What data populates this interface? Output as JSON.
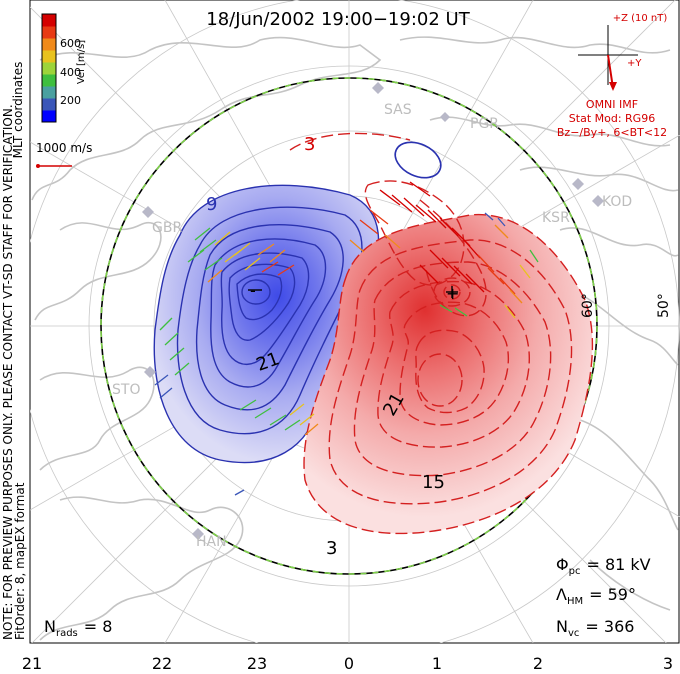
{
  "title": "18/Jun/2002 19:00−19:02 UT",
  "colorbar": {
    "label": "Vel [m/s]",
    "ticks": [
      "600",
      "400",
      "200"
    ],
    "colors": [
      "#0000ff",
      "#3a56b8",
      "#4aa0a0",
      "#3fbf3f",
      "#9dd43a",
      "#e8c21e",
      "#f08a1a",
      "#e83a14",
      "#d40000"
    ]
  },
  "coord_label": "MLT coordinates",
  "scale_vector": {
    "label": "1000 m/s"
  },
  "imf_panel": {
    "bz_label": "+Z (10 nT)",
    "by_label": "+Y",
    "source": "OMNI IMF",
    "model_line1": "Stat Mod: RG96",
    "model_line2": "Bz−/By+, 6<BT<12"
  },
  "notes": {
    "preview": "NOTE: FOR PREVIEW PURPOSES ONLY. PLEASE CONTACT VT-SD STAFF FOR VERIFICATION.",
    "fit": "FitOrder: 8, mapEX format"
  },
  "radars": [
    "SAS",
    "PGR",
    "KSR",
    "KOD",
    "GBR",
    "STO",
    "HAN"
  ],
  "latitude_labels": [
    "60°",
    "50°"
  ],
  "contour_labels": [
    "3",
    "9",
    "21",
    "-",
    "+",
    "21",
    "15",
    "3"
  ],
  "stats": {
    "phi_symbol": "Φ",
    "phi_sub": "pc",
    "phi_value": "= 81 kV",
    "lambda_symbol": "Λ",
    "lambda_sub": "HM",
    "lambda_value": "= 59°",
    "nvc_symbol": "N",
    "nvc_sub": "vc",
    "nvc_value": "= 366",
    "nrads_symbol": "N",
    "nrads_sub": "rads",
    "nrads_value": "= 8"
  },
  "mlt_axis": [
    "21",
    "22",
    "23",
    "0",
    "1",
    "2",
    "3"
  ]
}
